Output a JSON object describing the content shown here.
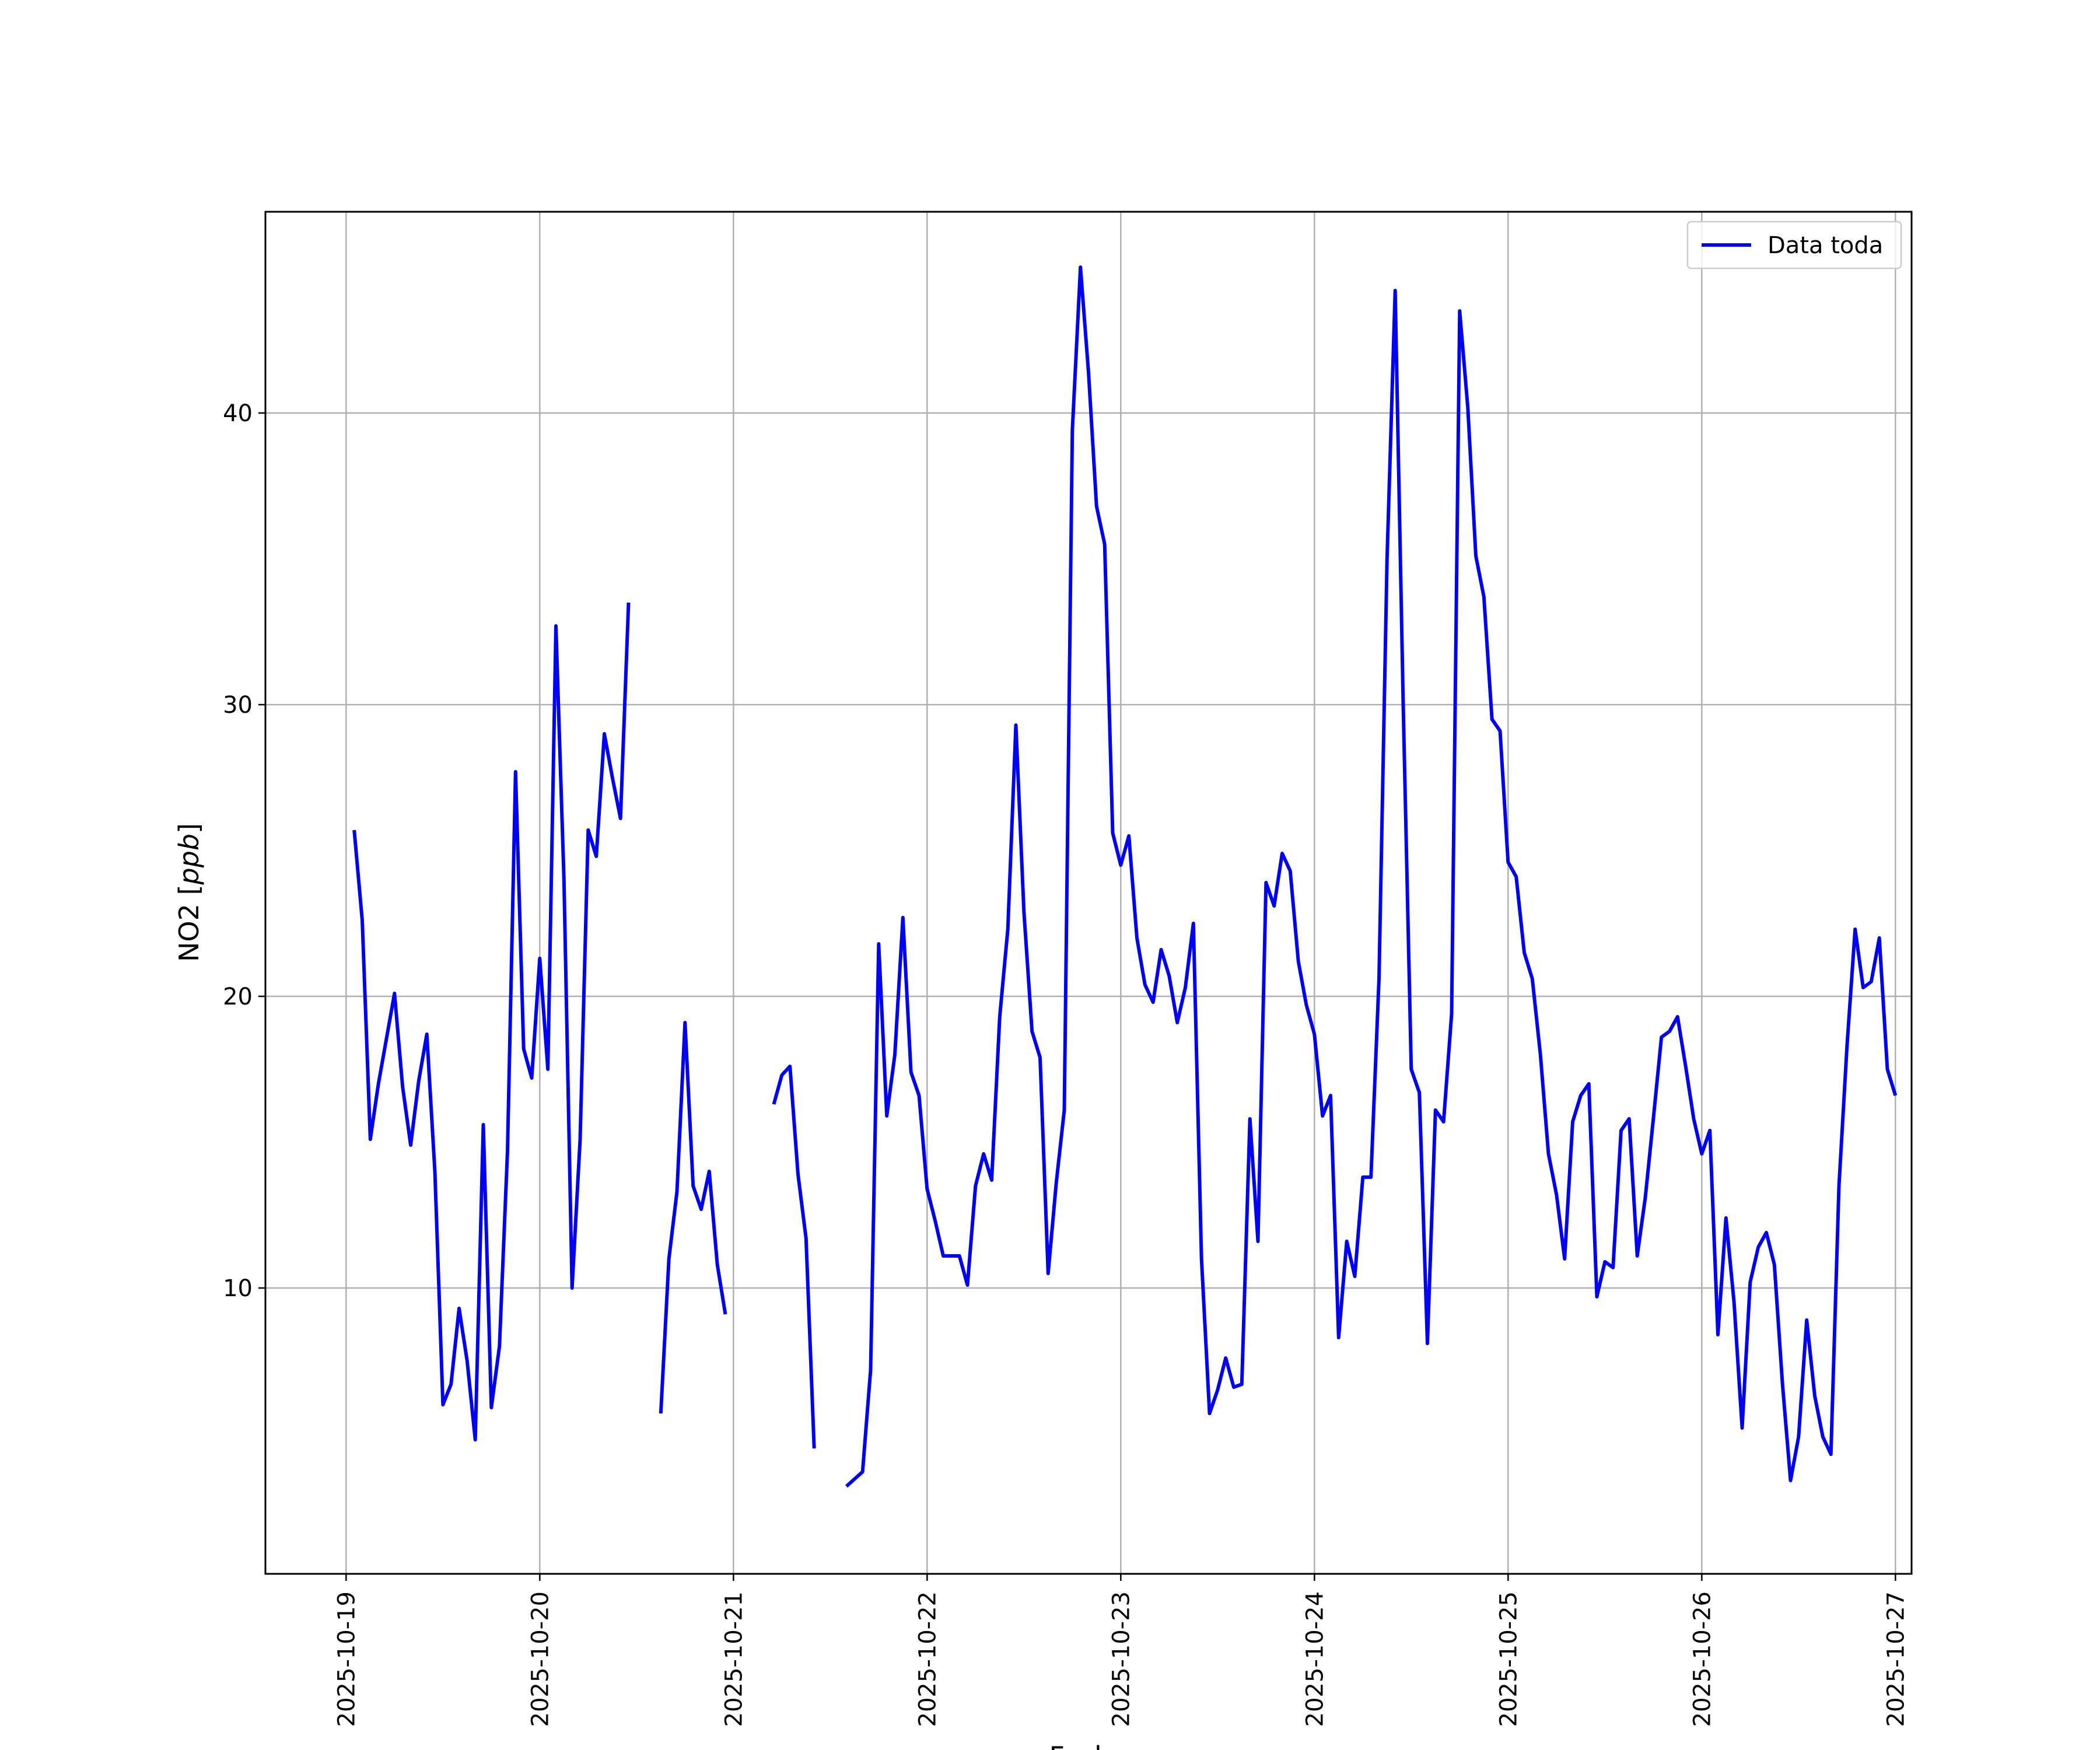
{
  "chart_data": {
    "type": "line",
    "title": "",
    "xlabel": "Fecha",
    "ylabel_main": "NO2 [",
    "ylabel_unit": "ppb",
    "ylabel_close": "]",
    "xlim": [
      "2025-10-18T14:00",
      "2025-10-27T02:00"
    ],
    "ylim": [
      0.2,
      46.9
    ],
    "grid": true,
    "legend": "top-right",
    "x_ticks": [
      "2025-10-19",
      "2025-10-20",
      "2025-10-21",
      "2025-10-22",
      "2025-10-23",
      "2025-10-24",
      "2025-10-25",
      "2025-10-26",
      "2025-10-27"
    ],
    "y_ticks": [
      10,
      20,
      30,
      40
    ],
    "colors": {
      "series": "#0000ff",
      "grid": "#b0b0b0",
      "frame": "#000000"
    },
    "series": [
      {
        "name": "Data toda",
        "segments": [
          [
            [
              "2025-10-19T01:00",
              25.7
            ],
            [
              "2025-10-19T02:00",
              22.6
            ],
            [
              "2025-10-19T03:00",
              15.1
            ],
            [
              "2025-10-19T04:00",
              17.0
            ],
            [
              "2025-10-19T06:00",
              20.1
            ],
            [
              "2025-10-19T07:00",
              16.9
            ],
            [
              "2025-10-19T08:00",
              14.9
            ],
            [
              "2025-10-19T09:00",
              17.1
            ],
            [
              "2025-10-19T10:00",
              18.7
            ],
            [
              "2025-10-19T11:00",
              14.0
            ],
            [
              "2025-10-19T12:00",
              6.0
            ],
            [
              "2025-10-19T13:00",
              6.7
            ],
            [
              "2025-10-19T14:00",
              9.3
            ],
            [
              "2025-10-19T15:00",
              7.5
            ],
            [
              "2025-10-19T16:00",
              4.8
            ],
            [
              "2025-10-19T17:00",
              15.6
            ],
            [
              "2025-10-19T18:00",
              5.9
            ],
            [
              "2025-10-19T19:00",
              8.0
            ],
            [
              "2025-10-19T20:00",
              14.7
            ],
            [
              "2025-10-19T21:00",
              27.7
            ],
            [
              "2025-10-19T22:00",
              18.2
            ],
            [
              "2025-10-19T23:00",
              17.2
            ],
            [
              "2025-10-20T00:00",
              21.3
            ],
            [
              "2025-10-20T01:00",
              17.5
            ],
            [
              "2025-10-20T02:00",
              32.7
            ],
            [
              "2025-10-20T03:00",
              24.0
            ],
            [
              "2025-10-20T04:00",
              10.0
            ],
            [
              "2025-10-20T05:00",
              15.1
            ],
            [
              "2025-10-20T06:00",
              25.7
            ],
            [
              "2025-10-20T07:00",
              24.8
            ],
            [
              "2025-10-20T08:00",
              29.0
            ],
            [
              "2025-10-20T09:00",
              27.5
            ],
            [
              "2025-10-20T10:00",
              26.1
            ],
            [
              "2025-10-20T11:00",
              33.5
            ]
          ],
          [
            [
              "2025-10-20T15:00",
              5.7
            ],
            [
              "2025-10-20T16:00",
              11.0
            ],
            [
              "2025-10-20T17:00",
              13.3
            ],
            [
              "2025-10-20T18:00",
              19.1
            ],
            [
              "2025-10-20T19:00",
              13.5
            ],
            [
              "2025-10-20T20:00",
              12.7
            ],
            [
              "2025-10-20T21:00",
              14.0
            ],
            [
              "2025-10-20T22:00",
              10.8
            ],
            [
              "2025-10-20T23:00",
              9.1
            ]
          ],
          [
            [
              "2025-10-21T05:00",
              16.3
            ],
            [
              "2025-10-21T06:00",
              17.3
            ],
            [
              "2025-10-21T07:00",
              17.6
            ],
            [
              "2025-10-21T08:00",
              13.9
            ],
            [
              "2025-10-21T09:00",
              11.7
            ],
            [
              "2025-10-21T10:00",
              4.5
            ]
          ],
          [
            [
              "2025-10-21T14:00",
              3.2
            ],
            [
              "2025-10-21T16:00",
              3.7
            ],
            [
              "2025-10-21T17:00",
              7.2
            ],
            [
              "2025-10-21T18:00",
              21.8
            ],
            [
              "2025-10-21T19:00",
              15.9
            ],
            [
              "2025-10-21T20:00",
              18.0
            ],
            [
              "2025-10-21T21:00",
              22.7
            ],
            [
              "2025-10-21T22:00",
              17.4
            ],
            [
              "2025-10-21T23:00",
              16.6
            ],
            [
              "2025-10-22T00:00",
              13.4
            ],
            [
              "2025-10-22T01:00",
              12.3
            ],
            [
              "2025-10-22T02:00",
              11.1
            ],
            [
              "2025-10-22T03:00",
              11.1
            ],
            [
              "2025-10-22T04:00",
              11.1
            ],
            [
              "2025-10-22T05:00",
              10.1
            ],
            [
              "2025-10-22T06:00",
              13.5
            ],
            [
              "2025-10-22T07:00",
              14.6
            ],
            [
              "2025-10-22T08:00",
              13.7
            ],
            [
              "2025-10-22T09:00",
              19.3
            ],
            [
              "2025-10-22T10:00",
              22.3
            ],
            [
              "2025-10-22T11:00",
              29.3
            ],
            [
              "2025-10-22T12:00",
              22.9
            ],
            [
              "2025-10-22T13:00",
              18.8
            ],
            [
              "2025-10-22T14:00",
              17.9
            ],
            [
              "2025-10-22T15:00",
              10.5
            ],
            [
              "2025-10-22T16:00",
              13.6
            ],
            [
              "2025-10-22T17:00",
              16.1
            ],
            [
              "2025-10-22T18:00",
              39.4
            ],
            [
              "2025-10-22T19:00",
              45.0
            ],
            [
              "2025-10-22T20:00",
              41.4
            ],
            [
              "2025-10-22T21:00",
              36.8
            ],
            [
              "2025-10-22T22:00",
              35.5
            ],
            [
              "2025-10-22T23:00",
              25.6
            ],
            [
              "2025-10-23T00:00",
              24.5
            ],
            [
              "2025-10-23T01:00",
              25.5
            ],
            [
              "2025-10-23T02:00",
              22.0
            ],
            [
              "2025-10-23T03:00",
              20.4
            ],
            [
              "2025-10-23T04:00",
              19.8
            ],
            [
              "2025-10-23T05:00",
              21.6
            ],
            [
              "2025-10-23T06:00",
              20.7
            ],
            [
              "2025-10-23T07:00",
              19.1
            ],
            [
              "2025-10-23T08:00",
              20.3
            ],
            [
              "2025-10-23T09:00",
              22.5
            ],
            [
              "2025-10-23T10:00",
              11.0
            ],
            [
              "2025-10-23T11:00",
              5.7
            ],
            [
              "2025-10-23T12:00",
              6.5
            ],
            [
              "2025-10-23T13:00",
              7.6
            ],
            [
              "2025-10-23T14:00",
              6.6
            ],
            [
              "2025-10-23T15:00",
              6.7
            ],
            [
              "2025-10-23T16:00",
              15.8
            ],
            [
              "2025-10-23T17:00",
              11.6
            ],
            [
              "2025-10-23T18:00",
              23.9
            ],
            [
              "2025-10-23T19:00",
              23.1
            ],
            [
              "2025-10-23T20:00",
              24.9
            ],
            [
              "2025-10-23T21:00",
              24.3
            ],
            [
              "2025-10-23T22:00",
              21.2
            ],
            [
              "2025-10-23T23:00",
              19.7
            ],
            [
              "2025-10-24T00:00",
              18.7
            ],
            [
              "2025-10-24T01:00",
              15.9
            ],
            [
              "2025-10-24T02:00",
              16.6
            ],
            [
              "2025-10-24T03:00",
              8.3
            ],
            [
              "2025-10-24T04:00",
              11.6
            ],
            [
              "2025-10-24T05:00",
              10.4
            ],
            [
              "2025-10-24T06:00",
              13.8
            ],
            [
              "2025-10-24T07:00",
              13.8
            ],
            [
              "2025-10-24T08:00",
              20.6
            ],
            [
              "2025-10-24T09:00",
              35.0
            ],
            [
              "2025-10-24T10:00",
              44.2
            ],
            [
              "2025-10-24T11:00",
              30.0
            ],
            [
              "2025-10-24T12:00",
              17.5
            ],
            [
              "2025-10-24T13:00",
              16.7
            ],
            [
              "2025-10-24T14:00",
              8.1
            ],
            [
              "2025-10-24T15:00",
              16.1
            ],
            [
              "2025-10-24T16:00",
              15.7
            ],
            [
              "2025-10-24T17:00",
              19.4
            ],
            [
              "2025-10-24T18:00",
              43.5
            ],
            [
              "2025-10-24T19:00",
              40.2
            ],
            [
              "2025-10-24T20:00",
              35.1
            ],
            [
              "2025-10-24T21:00",
              33.7
            ],
            [
              "2025-10-24T22:00",
              29.5
            ],
            [
              "2025-10-24T23:00",
              29.1
            ],
            [
              "2025-10-25T00:00",
              24.6
            ],
            [
              "2025-10-25T01:00",
              24.1
            ],
            [
              "2025-10-25T02:00",
              21.5
            ],
            [
              "2025-10-25T03:00",
              20.6
            ],
            [
              "2025-10-25T04:00",
              18.0
            ],
            [
              "2025-10-25T05:00",
              14.6
            ],
            [
              "2025-10-25T06:00",
              13.2
            ],
            [
              "2025-10-25T07:00",
              11.0
            ],
            [
              "2025-10-25T08:00",
              15.7
            ],
            [
              "2025-10-25T09:00",
              16.6
            ],
            [
              "2025-10-25T10:00",
              17.0
            ],
            [
              "2025-10-25T11:00",
              9.7
            ],
            [
              "2025-10-25T12:00",
              10.9
            ],
            [
              "2025-10-25T13:00",
              10.7
            ],
            [
              "2025-10-25T14:00",
              15.4
            ],
            [
              "2025-10-25T15:00",
              15.8
            ],
            [
              "2025-10-25T16:00",
              11.1
            ],
            [
              "2025-10-25T17:00",
              13.1
            ],
            [
              "2025-10-25T18:00",
              15.8
            ],
            [
              "2025-10-25T19:00",
              18.6
            ],
            [
              "2025-10-25T20:00",
              18.8
            ],
            [
              "2025-10-25T21:00",
              19.3
            ],
            [
              "2025-10-25T22:00",
              17.6
            ],
            [
              "2025-10-25T23:00",
              15.8
            ],
            [
              "2025-10-26T00:00",
              14.6
            ],
            [
              "2025-10-26T01:00",
              15.4
            ],
            [
              "2025-10-26T02:00",
              8.4
            ],
            [
              "2025-10-26T03:00",
              12.4
            ],
            [
              "2025-10-26T04:00",
              9.5
            ],
            [
              "2025-10-26T05:00",
              5.2
            ],
            [
              "2025-10-26T06:00",
              10.2
            ],
            [
              "2025-10-26T07:00",
              11.4
            ],
            [
              "2025-10-26T08:00",
              11.9
            ],
            [
              "2025-10-26T09:00",
              10.8
            ],
            [
              "2025-10-26T10:00",
              6.7
            ],
            [
              "2025-10-26T11:00",
              3.4
            ],
            [
              "2025-10-26T12:00",
              4.9
            ],
            [
              "2025-10-26T13:00",
              8.9
            ],
            [
              "2025-10-26T14:00",
              6.3
            ],
            [
              "2025-10-26T15:00",
              4.9
            ],
            [
              "2025-10-26T16:00",
              4.3
            ],
            [
              "2025-10-26T17:00",
              13.5
            ],
            [
              "2025-10-26T18:00",
              18.3
            ],
            [
              "2025-10-26T19:00",
              22.3
            ],
            [
              "2025-10-26T20:00",
              20.3
            ],
            [
              "2025-10-26T21:00",
              20.5
            ],
            [
              "2025-10-26T22:00",
              22.0
            ],
            [
              "2025-10-26T23:00",
              17.5
            ],
            [
              "2025-10-27T00:00",
              16.6
            ]
          ]
        ]
      }
    ]
  }
}
